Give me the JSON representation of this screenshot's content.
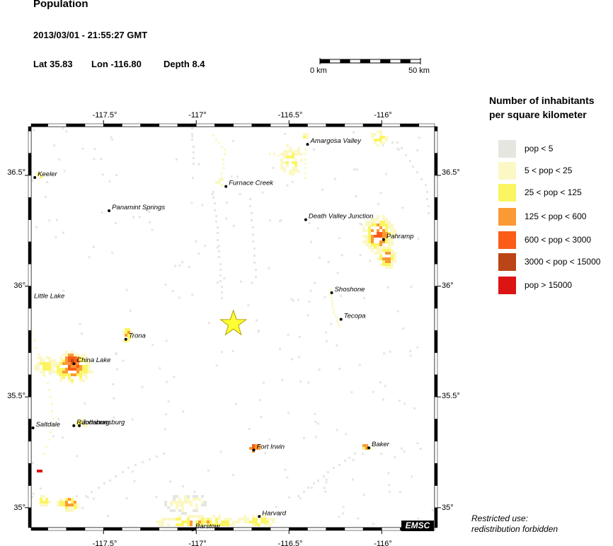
{
  "header": {
    "title": "Population",
    "datetime": "2013/03/01 - 21:55:27 GMT",
    "lat": "Lat 35.83",
    "lon": "Lon -116.80",
    "depth": "Depth  8.4"
  },
  "scale_bar": {
    "start_label": "0 km",
    "end_label": "50 km"
  },
  "axes": {
    "lon_ticks": [
      "-117.5°",
      "-117°",
      "-116.5°",
      "-116°"
    ],
    "lat_ticks": [
      "36.5°",
      "36°",
      "35.5°",
      "35°"
    ]
  },
  "places": [
    {
      "name": "Amargosa Valley",
      "lon": -116.4,
      "lat": 36.64
    },
    {
      "name": "Keeler",
      "lon": -117.87,
      "lat": 36.49
    },
    {
      "name": "Furnace Creek",
      "lon": -116.84,
      "lat": 36.45
    },
    {
      "name": "Panamint Springs",
      "lon": -117.47,
      "lat": 36.34
    },
    {
      "name": "Death Valley Junction",
      "lon": -116.41,
      "lat": 36.3
    },
    {
      "name": "Pahramp",
      "lon": -115.99,
      "lat": 36.21
    },
    {
      "name": "Shoshone",
      "lon": -116.27,
      "lat": 35.97
    },
    {
      "name": "Little Lake",
      "lon": -117.89,
      "lat": 35.94
    },
    {
      "name": "Tecopa",
      "lon": -116.22,
      "lat": 35.85
    },
    {
      "name": "Trona",
      "lon": -117.38,
      "lat": 35.76
    },
    {
      "name": "China Lake",
      "lon": -117.66,
      "lat": 35.65
    },
    {
      "name": "Randsburg",
      "lon": -117.66,
      "lat": 35.37
    },
    {
      "name": "Johannesburg",
      "lon": -117.63,
      "lat": 35.37
    },
    {
      "name": "Saltdale",
      "lon": -117.88,
      "lat": 35.36
    },
    {
      "name": "Fort Irwin",
      "lon": -116.69,
      "lat": 35.26
    },
    {
      "name": "Baker",
      "lon": -116.07,
      "lat": 35.27
    },
    {
      "name": "Harvard",
      "lon": -116.66,
      "lat": 34.96
    },
    {
      "name": "Barstow",
      "lon": -117.02,
      "lat": 34.9
    }
  ],
  "epicenter": {
    "lon": -116.8,
    "lat": 35.83,
    "color": "#ffff33"
  },
  "legend": {
    "title_line1": "Number of inhabitants",
    "title_line2": "per square kilometer",
    "items": [
      {
        "label": "pop < 5",
        "color": "#e6e6e1"
      },
      {
        "label": "5 < pop < 25",
        "color": "#fbf8c6"
      },
      {
        "label": "25 < pop < 125",
        "color": "#fbf562"
      },
      {
        "label": "125 < pop < 600",
        "color": "#fb9a35"
      },
      {
        "label": "600 < pop < 3000",
        "color": "#fb5c18"
      },
      {
        "label": "3000 < pop < 15000",
        "color": "#bb4516"
      },
      {
        "label": "pop > 15000",
        "color": "#dc1414"
      }
    ]
  },
  "footer": {
    "restricted_line1": "Restricted use:",
    "restricted_line2": "redistribution forbidden",
    "badge": "EMSC"
  }
}
